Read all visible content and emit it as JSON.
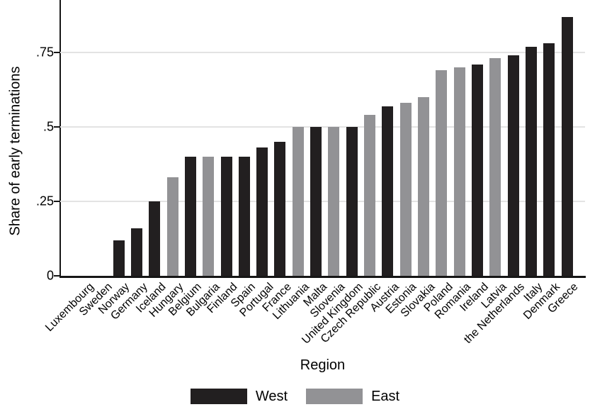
{
  "chart_data": {
    "type": "bar",
    "title": "",
    "xlabel": "Region",
    "ylabel": "Share of early terminations",
    "ylim": [
      0,
      0.93
    ],
    "grid": "horizontal",
    "legend_position": "bottom",
    "yticks": [
      {
        "value": 0,
        "label": "0"
      },
      {
        "value": 0.25,
        "label": ".25"
      },
      {
        "value": 0.5,
        "label": ".5"
      },
      {
        "value": 0.75,
        "label": ".75"
      }
    ],
    "legend": [
      {
        "name": "West",
        "color": "#221f20"
      },
      {
        "name": "East",
        "color": "#929295"
      }
    ],
    "categories": [
      "Luxembourg",
      "Sweden",
      "Norway",
      "Germany",
      "Iceland",
      "Hungary",
      "Belgium",
      "Bulgaria",
      "Finland",
      "Spain",
      "Portugal",
      "France",
      "Lithuania",
      "Malta",
      "Slovenia",
      "United Kingdom",
      "Czech Republic",
      "Austria",
      "Estonia",
      "Slovakia",
      "Poland",
      "Romania",
      "Ireland",
      "Latvia",
      "the Netherlands",
      "Italy",
      "Denmark",
      "Greece"
    ],
    "values": [
      0,
      0,
      0.12,
      0.16,
      0.25,
      0.33,
      0.4,
      0.4,
      0.4,
      0.4,
      0.43,
      0.45,
      0.5,
      0.5,
      0.5,
      0.5,
      0.54,
      0.57,
      0.58,
      0.6,
      0.69,
      0.7,
      0.71,
      0.73,
      0.74,
      0.77,
      0.78,
      0.87
    ],
    "groups": [
      "West",
      "West",
      "West",
      "West",
      "West",
      "East",
      "West",
      "East",
      "West",
      "West",
      "West",
      "West",
      "East",
      "West",
      "East",
      "West",
      "East",
      "West",
      "East",
      "East",
      "East",
      "East",
      "West",
      "East",
      "West",
      "West",
      "West",
      "West"
    ]
  }
}
